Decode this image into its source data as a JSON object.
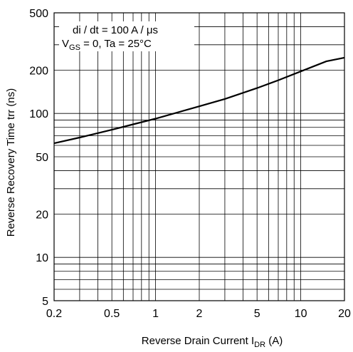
{
  "chart_data": {
    "type": "line",
    "title": "",
    "xlabel_main": "Reverse Drain Current I",
    "xlabel_sub": "DR",
    "xlabel_unit": " (A)",
    "ylabel": "Reverse Recovery Time trr (ns)",
    "x_scale": "log",
    "y_scale": "log",
    "xlim": [
      0.2,
      20
    ],
    "ylim": [
      5,
      500
    ],
    "grid": true,
    "x_ticks": [
      0.2,
      0.5,
      1,
      2,
      5,
      10,
      20
    ],
    "x_tick_labels": [
      "0.2",
      "0.5",
      "1",
      "2",
      "5",
      "10",
      "20"
    ],
    "y_ticks": [
      5,
      10,
      20,
      50,
      100,
      200,
      500
    ],
    "y_tick_labels": [
      "5",
      "10",
      "20",
      "50",
      "100",
      "200",
      "500"
    ],
    "annotations": {
      "line1": "di / dt = 100 A / μs",
      "line2_v": "V",
      "line2_sub": "GS",
      "line2_rest": " = 0, Ta = 25°C"
    },
    "series": [
      {
        "x": [
          0.2,
          0.3,
          0.5,
          0.7,
          1,
          2,
          3,
          5,
          7,
          10,
          15,
          20
        ],
        "values": [
          62,
          68,
          77,
          84,
          92,
          112,
          126,
          150,
          170,
          196,
          230,
          244
        ]
      }
    ]
  }
}
